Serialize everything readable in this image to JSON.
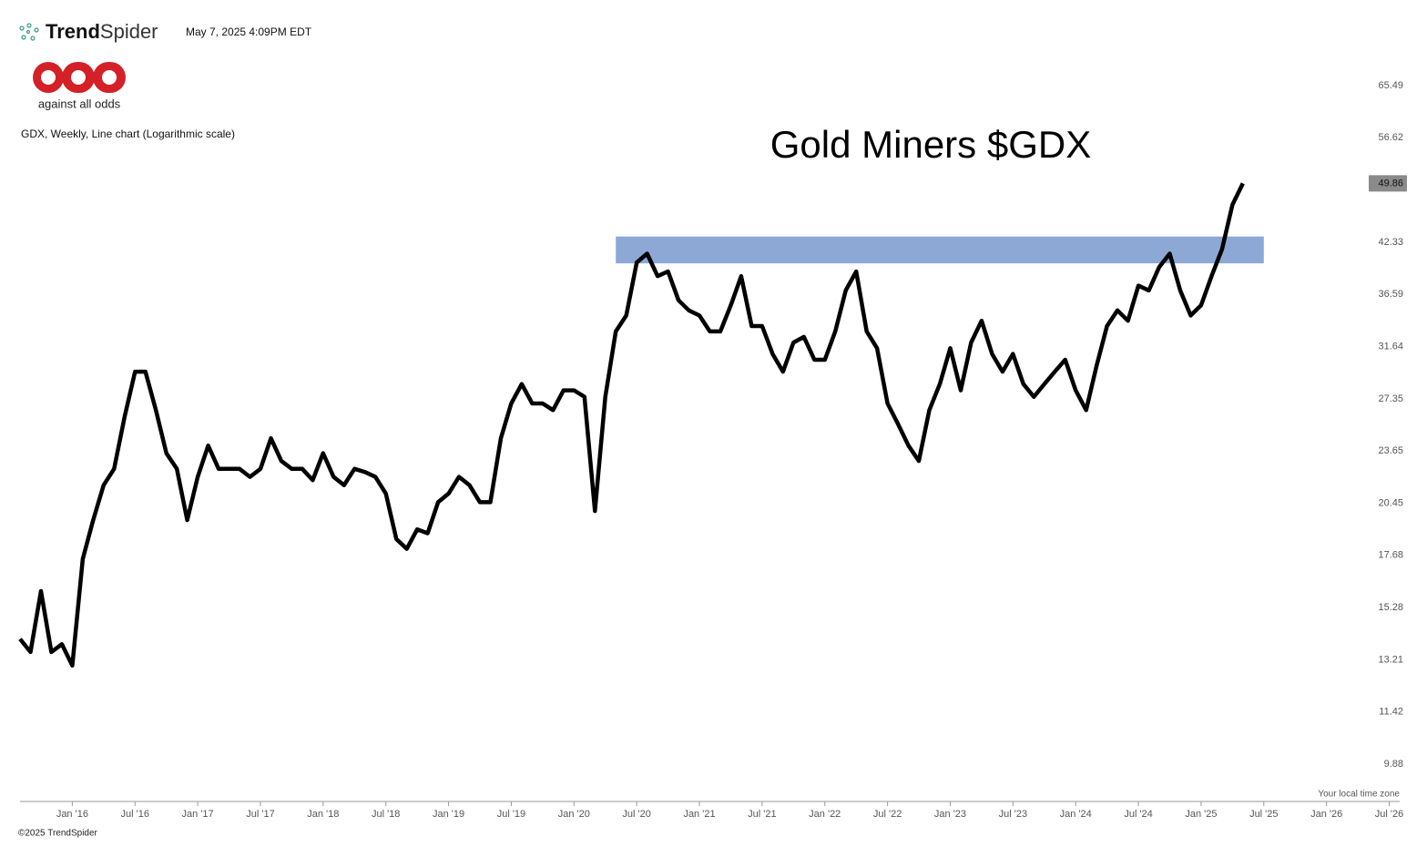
{
  "header": {
    "brand_bold": "Trend",
    "brand_light": "Spider",
    "timestamp": "May 7, 2025 4:09PM EDT",
    "logo_text": "against all odds",
    "chart_info": "GDX, Weekly, Line chart (Logarithmic scale)"
  },
  "footer": {
    "timezone": "Your local time zone",
    "copyright": "©2025 TrendSpider"
  },
  "chart_data": {
    "type": "line",
    "title": "Gold Miners $GDX",
    "log_scale": true,
    "x": [
      "2015-08",
      "2015-09",
      "2015-10",
      "2015-11",
      "2015-12",
      "2016-01",
      "2016-02",
      "2016-03",
      "2016-04",
      "2016-05",
      "2016-06",
      "2016-07",
      "2016-08",
      "2016-09",
      "2016-10",
      "2016-11",
      "2016-12",
      "2017-01",
      "2017-02",
      "2017-03",
      "2017-04",
      "2017-05",
      "2017-06",
      "2017-07",
      "2017-08",
      "2017-09",
      "2017-10",
      "2017-11",
      "2017-12",
      "2018-01",
      "2018-02",
      "2018-03",
      "2018-04",
      "2018-05",
      "2018-06",
      "2018-07",
      "2018-08",
      "2018-09",
      "2018-10",
      "2018-11",
      "2018-12",
      "2019-01",
      "2019-02",
      "2019-03",
      "2019-04",
      "2019-05",
      "2019-06",
      "2019-07",
      "2019-08",
      "2019-09",
      "2019-10",
      "2019-11",
      "2019-12",
      "2020-01",
      "2020-02",
      "2020-03",
      "2020-04",
      "2020-05",
      "2020-06",
      "2020-07",
      "2020-08",
      "2020-09",
      "2020-10",
      "2020-11",
      "2020-12",
      "2021-01",
      "2021-02",
      "2021-03",
      "2021-04",
      "2021-05",
      "2021-06",
      "2021-07",
      "2021-08",
      "2021-09",
      "2021-10",
      "2021-11",
      "2021-12",
      "2022-01",
      "2022-02",
      "2022-03",
      "2022-04",
      "2022-05",
      "2022-06",
      "2022-07",
      "2022-08",
      "2022-09",
      "2022-10",
      "2022-11",
      "2022-12",
      "2023-01",
      "2023-02",
      "2023-03",
      "2023-04",
      "2023-05",
      "2023-06",
      "2023-07",
      "2023-08",
      "2023-09",
      "2023-10",
      "2023-11",
      "2023-12",
      "2024-01",
      "2024-02",
      "2024-03",
      "2024-04",
      "2024-05",
      "2024-06",
      "2024-07",
      "2024-08",
      "2024-09",
      "2024-10",
      "2024-11",
      "2024-12",
      "2025-01",
      "2025-02",
      "2025-03",
      "2025-04",
      "2025-05"
    ],
    "series": [
      {
        "name": "GDX",
        "color": "#000000",
        "values": [
          14.0,
          13.5,
          16.0,
          13.5,
          13.8,
          13.0,
          17.5,
          19.5,
          21.5,
          22.5,
          26.0,
          29.5,
          29.5,
          26.5,
          23.5,
          22.5,
          19.5,
          22.0,
          24.0,
          22.5,
          22.5,
          22.5,
          22.0,
          22.5,
          24.5,
          23.0,
          22.5,
          22.5,
          21.8,
          23.5,
          22.0,
          21.5,
          22.5,
          22.3,
          22.0,
          21.0,
          18.5,
          18.0,
          19.0,
          18.8,
          20.5,
          21.0,
          22.0,
          21.5,
          20.5,
          20.5,
          24.5,
          27.0,
          28.5,
          27.0,
          27.0,
          26.5,
          28.0,
          28.0,
          27.5,
          20.0,
          27.5,
          33.0,
          34.5,
          40.0,
          41.0,
          38.5,
          39.0,
          36.0,
          35.0,
          34.5,
          33.0,
          33.0,
          35.5,
          38.5,
          33.5,
          33.5,
          31.0,
          29.5,
          32.0,
          32.5,
          30.5,
          30.5,
          33.0,
          37.0,
          39.0,
          33.0,
          31.5,
          27.0,
          25.5,
          24.0,
          23.0,
          26.5,
          28.5,
          31.5,
          28.0,
          32.0,
          34.0,
          31.0,
          29.5,
          31.0,
          28.5,
          27.5,
          28.5,
          29.5,
          30.5,
          28.0,
          26.5,
          30.0,
          33.5,
          35.0,
          34.0,
          37.5,
          37.0,
          39.5,
          41.0,
          37.0,
          34.5,
          35.5,
          38.5,
          41.5,
          47.0,
          49.86
        ]
      }
    ],
    "price_label": 49.86,
    "zone": {
      "x": [
        "2020-05",
        "2025-07"
      ],
      "y": [
        39.9,
        43.0
      ],
      "color": "#8ea8d6"
    },
    "xlim": [
      "2015-08",
      "2026-08"
    ],
    "xticks": [
      {
        "value": "2016-01",
        "label": "Jan '16"
      },
      {
        "value": "2016-07",
        "label": "Jul '16"
      },
      {
        "value": "2017-01",
        "label": "Jan '17"
      },
      {
        "value": "2017-07",
        "label": "Jul '17"
      },
      {
        "value": "2018-01",
        "label": "Jan '18"
      },
      {
        "value": "2018-07",
        "label": "Jul '18"
      },
      {
        "value": "2019-01",
        "label": "Jan '19"
      },
      {
        "value": "2019-07",
        "label": "Jul '19"
      },
      {
        "value": "2020-01",
        "label": "Jan '20"
      },
      {
        "value": "2020-07",
        "label": "Jul '20"
      },
      {
        "value": "2021-01",
        "label": "Jan '21"
      },
      {
        "value": "2021-07",
        "label": "Jul '21"
      },
      {
        "value": "2022-01",
        "label": "Jan '22"
      },
      {
        "value": "2022-07",
        "label": "Jul '22"
      },
      {
        "value": "2023-01",
        "label": "Jan '23"
      },
      {
        "value": "2023-07",
        "label": "Jul '23"
      },
      {
        "value": "2024-01",
        "label": "Jan '24"
      },
      {
        "value": "2024-07",
        "label": "Jul '24"
      },
      {
        "value": "2025-01",
        "label": "Jan '25"
      },
      {
        "value": "2025-07",
        "label": "Jul '25"
      },
      {
        "value": "2026-01",
        "label": "Jan '26"
      },
      {
        "value": "2026-07",
        "label": "Jul '26"
      }
    ],
    "ylim": [
      8.9,
      71.4
    ],
    "yticks": [
      65.49,
      56.62,
      42.33,
      36.59,
      31.64,
      27.35,
      23.65,
      20.45,
      17.68,
      15.28,
      13.21,
      11.42,
      9.88
    ]
  }
}
